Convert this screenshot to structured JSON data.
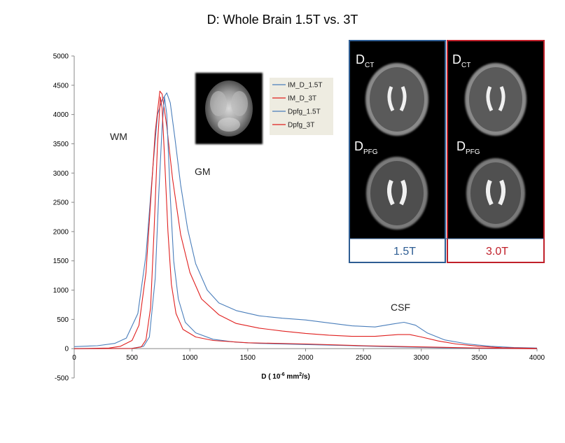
{
  "chart_data": {
    "type": "line",
    "title": "D: Whole Brain 1.5T vs. 3T",
    "xlabel": "D ( 10",
    "xlabel_exp": "-6",
    "xlabel_unit": " mm",
    "xlabel_unit_exp": "2",
    "xlabel_end": "/s)",
    "ylabel": "",
    "xlim": [
      0,
      4000
    ],
    "ylim": [
      -500,
      5000
    ],
    "x_ticks": [
      "0",
      "500",
      "1000",
      "1500",
      "2000",
      "2500",
      "3000",
      "3500",
      "4000"
    ],
    "y_ticks": [
      "5000",
      "4500",
      "4000",
      "3500",
      "3000",
      "2500",
      "2000",
      "1500",
      "1000",
      "500",
      "0",
      "-500"
    ],
    "legend_position": "top-center",
    "series": [
      {
        "name": "IM_D_1.5T",
        "color": "#4a7ebb",
        "points": [
          [
            0,
            35
          ],
          [
            200,
            50
          ],
          [
            350,
            90
          ],
          [
            450,
            180
          ],
          [
            550,
            600
          ],
          [
            620,
            1600
          ],
          [
            680,
            3100
          ],
          [
            720,
            4000
          ],
          [
            760,
            4250
          ],
          [
            800,
            4370
          ],
          [
            830,
            4200
          ],
          [
            870,
            3600
          ],
          [
            920,
            2800
          ],
          [
            980,
            2050
          ],
          [
            1050,
            1450
          ],
          [
            1150,
            1000
          ],
          [
            1250,
            780
          ],
          [
            1400,
            650
          ],
          [
            1600,
            560
          ],
          [
            1800,
            520
          ],
          [
            2000,
            490
          ],
          [
            2200,
            440
          ],
          [
            2400,
            390
          ],
          [
            2600,
            370
          ],
          [
            2750,
            420
          ],
          [
            2850,
            450
          ],
          [
            2950,
            400
          ],
          [
            3050,
            270
          ],
          [
            3200,
            150
          ],
          [
            3400,
            80
          ],
          [
            3600,
            40
          ],
          [
            3800,
            20
          ],
          [
            4000,
            10
          ]
        ]
      },
      {
        "name": "IM_D_3T",
        "color": "#e0201f",
        "points": [
          [
            0,
            0
          ],
          [
            300,
            10
          ],
          [
            400,
            40
          ],
          [
            500,
            140
          ],
          [
            560,
            400
          ],
          [
            620,
            1300
          ],
          [
            660,
            2500
          ],
          [
            700,
            3700
          ],
          [
            740,
            4400
          ],
          [
            760,
            4350
          ],
          [
            800,
            3800
          ],
          [
            850,
            2900
          ],
          [
            920,
            1950
          ],
          [
            1000,
            1300
          ],
          [
            1100,
            850
          ],
          [
            1250,
            580
          ],
          [
            1400,
            430
          ],
          [
            1600,
            350
          ],
          [
            1800,
            300
          ],
          [
            2000,
            260
          ],
          [
            2200,
            230
          ],
          [
            2400,
            210
          ],
          [
            2600,
            210
          ],
          [
            2800,
            240
          ],
          [
            2900,
            240
          ],
          [
            3000,
            200
          ],
          [
            3150,
            130
          ],
          [
            3300,
            80
          ],
          [
            3500,
            40
          ],
          [
            3700,
            15
          ],
          [
            4000,
            5
          ]
        ]
      },
      {
        "name": "Dpfg_1.5T",
        "color": "#4a7ebb",
        "points": [
          [
            0,
            0
          ],
          [
            500,
            5
          ],
          [
            600,
            40
          ],
          [
            650,
            200
          ],
          [
            700,
            1200
          ],
          [
            730,
            2600
          ],
          [
            760,
            3800
          ],
          [
            780,
            4300
          ],
          [
            800,
            4000
          ],
          [
            830,
            2600
          ],
          [
            860,
            1500
          ],
          [
            900,
            850
          ],
          [
            960,
            450
          ],
          [
            1050,
            270
          ],
          [
            1200,
            160
          ],
          [
            1400,
            110
          ],
          [
            1600,
            90
          ],
          [
            2000,
            70
          ],
          [
            2400,
            50
          ],
          [
            2800,
            30
          ],
          [
            3200,
            15
          ],
          [
            3600,
            5
          ],
          [
            4000,
            0
          ]
        ]
      },
      {
        "name": "Dpfg_3T",
        "color": "#e0201f",
        "points": [
          [
            0,
            0
          ],
          [
            500,
            3
          ],
          [
            580,
            30
          ],
          [
            620,
            150
          ],
          [
            660,
            700
          ],
          [
            690,
            2000
          ],
          [
            720,
            3500
          ],
          [
            745,
            4300
          ],
          [
            760,
            4100
          ],
          [
            780,
            3300
          ],
          [
            810,
            2000
          ],
          [
            840,
            1100
          ],
          [
            880,
            600
          ],
          [
            940,
            330
          ],
          [
            1050,
            200
          ],
          [
            1200,
            140
          ],
          [
            1500,
            100
          ],
          [
            2000,
            80
          ],
          [
            2500,
            50
          ],
          [
            3000,
            30
          ],
          [
            3500,
            10
          ],
          [
            4000,
            0
          ]
        ]
      }
    ],
    "annotations": {
      "wm": "WM",
      "gm": "GM",
      "csf": "CSF"
    }
  },
  "inset": {
    "left_label": "1.5T",
    "right_label": "3.0T",
    "dct_main": "D",
    "dct_sub": "CT",
    "dpfg_main": "D",
    "dpfg_sub": "PFG",
    "blue_color": "#2e5d93",
    "red_color": "#c0202a"
  }
}
